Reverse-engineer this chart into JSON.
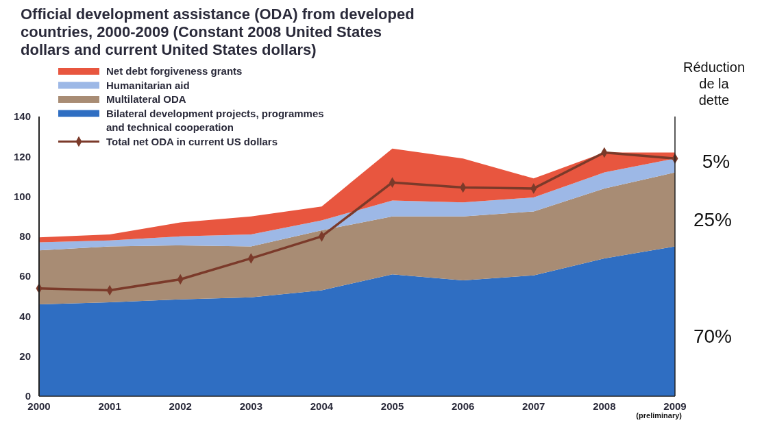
{
  "chart_data": {
    "type": "area",
    "title": "Official development assistance (ODA) from developed countries, 2000-2009 (Constant 2008 United States dollars and current United States dollars)",
    "stacked": true,
    "x": [
      2000,
      2001,
      2002,
      2003,
      2004,
      2005,
      2006,
      2007,
      2008,
      2009
    ],
    "xlim": [
      2000,
      2009
    ],
    "xticks": [
      2000,
      2001,
      2002,
      2003,
      2004,
      2005,
      2006,
      2007,
      2008,
      2009
    ],
    "ylim": [
      0,
      140
    ],
    "yticks": [
      0,
      20,
      40,
      60,
      80,
      100,
      120,
      140
    ],
    "grid": false,
    "legend": "top left",
    "series": [
      {
        "name": "Bilateral development projects, programmes and technical cooperation",
        "color": "#2f6ec2",
        "values": [
          46,
          47,
          48.5,
          49.5,
          53,
          61,
          58,
          60.5,
          69,
          75
        ]
      },
      {
        "name": "Multilateral ODA",
        "color": "#a88c74",
        "values": [
          27,
          28,
          27,
          25.5,
          30,
          29,
          32,
          32,
          35,
          37
        ]
      },
      {
        "name": "Humanitarian aid",
        "color": "#9db8e6",
        "values": [
          4,
          3,
          4.5,
          6,
          5,
          8,
          7,
          7,
          8,
          7
        ]
      },
      {
        "name": "Net debt forgiveness grants",
        "color": "#e8563f",
        "values": [
          2.5,
          3,
          7,
          9,
          7,
          26,
          22,
          9.5,
          10,
          3
        ]
      },
      {
        "name": "Total net ODA in current US dollars",
        "type": "line",
        "color": "#7b3a2a",
        "marker": "diamond",
        "line_style": "solid",
        "values": [
          54,
          53,
          58.5,
          69,
          80,
          107,
          104.5,
          104,
          122,
          119
        ]
      }
    ],
    "annotations": [
      "(preliminary)",
      "Réduction de la dette",
      "5%",
      "25%",
      "70%"
    ]
  }
}
